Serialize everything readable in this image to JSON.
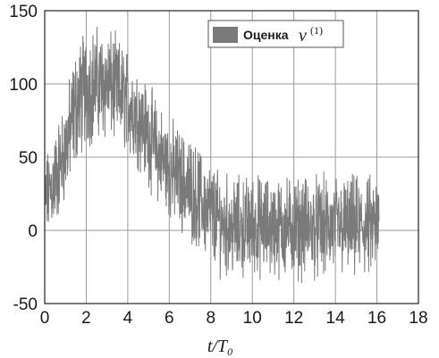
{
  "chart_data": {
    "type": "line",
    "xlabel": "t/T",
    "xlabel_sub": "0",
    "ylabel": "",
    "xlim": [
      0,
      18
    ],
    "ylim": [
      -50,
      150
    ],
    "xticks": [
      0,
      2,
      4,
      6,
      8,
      10,
      12,
      14,
      16,
      18
    ],
    "yticks": [
      -50,
      0,
      50,
      100,
      150
    ],
    "grid": true,
    "legend": {
      "placement": "top-right",
      "label": "Оценка",
      "symbol": "ν",
      "superscript": "(1)"
    },
    "series": [
      {
        "name": "Оценка ν(1)",
        "color": "#7a7a7a",
        "envelope": {
          "x": [
            0.0,
            0.5,
            1.0,
            1.5,
            2.0,
            2.5,
            3.0,
            3.5,
            4.0,
            4.5,
            5.0,
            5.5,
            6.0,
            6.5,
            7.0,
            7.5,
            8.0,
            8.5,
            9.0,
            9.5,
            10.0,
            11.0,
            12.0,
            13.0,
            14.0,
            15.0,
            16.0,
            16.1
          ],
          "mean": [
            20,
            35,
            55,
            85,
            98,
            100,
            100,
            95,
            88,
            78,
            65,
            52,
            42,
            35,
            28,
            20,
            12,
            5,
            2,
            2,
            3,
            2,
            2,
            2,
            2,
            2,
            2,
            2
          ],
          "spread": [
            20,
            25,
            25,
            30,
            30,
            28,
            28,
            26,
            26,
            25,
            25,
            25,
            25,
            25,
            25,
            25,
            25,
            25,
            25,
            25,
            25,
            25,
            25,
            25,
            25,
            25,
            25,
            25
          ]
        }
      }
    ]
  }
}
